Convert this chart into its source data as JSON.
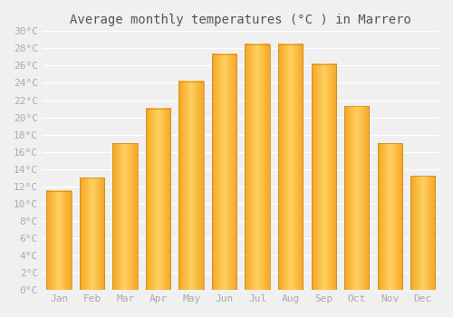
{
  "title": "Average monthly temperatures (°C ) in Marrero",
  "months": [
    "Jan",
    "Feb",
    "Mar",
    "Apr",
    "May",
    "Jun",
    "Jul",
    "Aug",
    "Sep",
    "Oct",
    "Nov",
    "Dec"
  ],
  "values": [
    11.5,
    13.0,
    17.0,
    21.0,
    24.2,
    27.3,
    28.5,
    28.5,
    26.2,
    21.3,
    17.0,
    13.2
  ],
  "bar_color_center": "#FFD060",
  "bar_color_edge": "#F5A623",
  "bar_outline_color": "#C8871A",
  "ylim": [
    0,
    30
  ],
  "ytick_step": 2,
  "background_color": "#f0f0f0",
  "grid_color": "#ffffff",
  "title_fontsize": 10,
  "tick_fontsize": 8,
  "bar_width": 0.75
}
